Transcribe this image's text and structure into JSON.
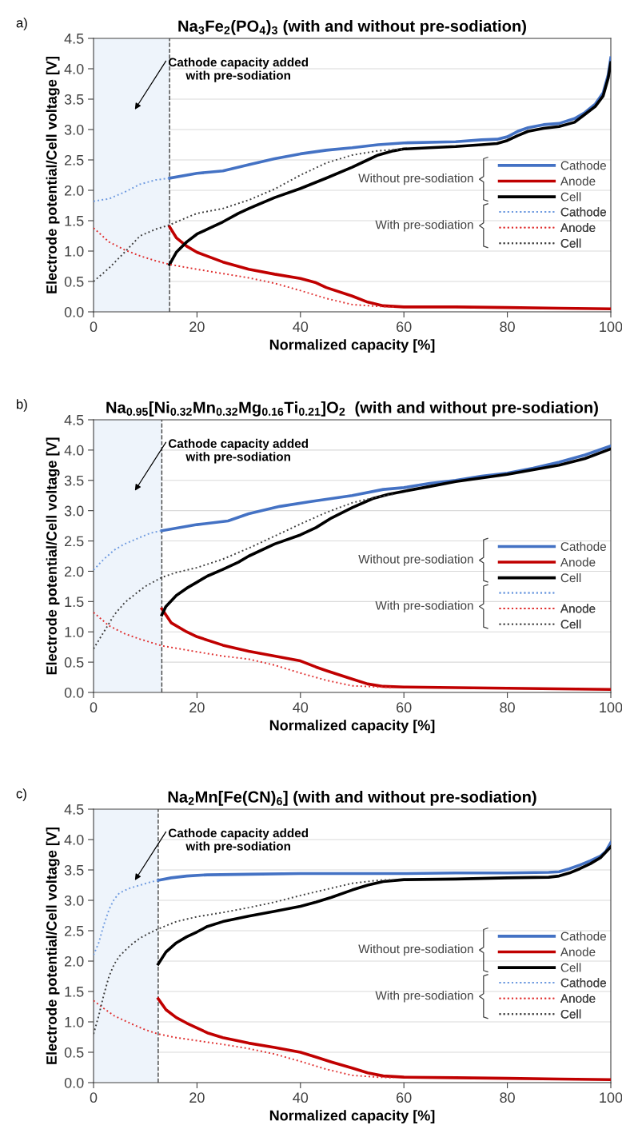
{
  "chart_data": [
    {
      "type": "line",
      "title": "Na$_{3}$Fe$_{2}$(PO$_{4}$)$_{3}$ (with and without pre-sodiation)",
      "xlabel": "Normalized capacity [%]",
      "ylabel": "Electrode potential/Cell voltage [V]",
      "xlim": [
        0,
        100
      ],
      "ylim": [
        0,
        4.5
      ],
      "xticks": [
        0,
        20,
        40,
        60,
        80,
        100
      ],
      "yticks": [
        {
          "value": 0,
          "label": "0.0"
        },
        0.5,
        {
          "value": 1,
          "label": "1.0"
        },
        1.5,
        {
          "value": 2,
          "label": "2.0"
        },
        2.5,
        {
          "value": 3,
          "label": "3.0"
        },
        3.5,
        {
          "value": 4,
          "label": "4.0"
        },
        4.5
      ],
      "grid": "y",
      "legend": "right",
      "bands": [
        {
          "axis": "x",
          "from": 0,
          "to": 14.7,
          "color": "#eef4fb"
        }
      ],
      "ref_lines": [
        {
          "axis": "x",
          "value": 14.7,
          "color": "#404040",
          "line_style": "dashed"
        }
      ],
      "annotations": [
        "a)",
        "Cathode capacity added\nwith pre-sodiation",
        "Without pre-sodiation",
        "With pre-sodiation"
      ],
      "series": [
        {
          "name": "Cathode",
          "color": "#4472c4",
          "line_style": "solid",
          "x": [
            14.7,
            20,
            25,
            30,
            35,
            40,
            45,
            50,
            55,
            60,
            70,
            75,
            78,
            80,
            82,
            84,
            87,
            90,
            93,
            95,
            97,
            98.5,
            99.5,
            100
          ],
          "values": [
            2.2,
            2.28,
            2.32,
            2.42,
            2.52,
            2.6,
            2.66,
            2.7,
            2.75,
            2.78,
            2.8,
            2.83,
            2.84,
            2.88,
            2.97,
            3.03,
            3.08,
            3.1,
            3.18,
            3.28,
            3.42,
            3.6,
            3.9,
            4.18
          ]
        },
        {
          "name": "Anode",
          "color": "#c00000",
          "line_style": "solid",
          "x": [
            14.7,
            16,
            18,
            20,
            25,
            30,
            35,
            40,
            43,
            45,
            50,
            53,
            56,
            60,
            70,
            80,
            90,
            100
          ],
          "values": [
            1.4,
            1.22,
            1.08,
            0.98,
            0.82,
            0.7,
            0.62,
            0.55,
            0.48,
            0.4,
            0.26,
            0.16,
            0.1,
            0.08,
            0.08,
            0.07,
            0.06,
            0.05
          ]
        },
        {
          "name": "Cell",
          "color": "#000000",
          "line_style": "solid",
          "x": [
            14.7,
            16,
            18,
            20,
            22,
            25,
            28,
            30,
            35,
            40,
            45,
            50,
            53,
            55,
            58,
            60,
            65,
            70,
            75,
            78,
            80,
            82,
            84,
            87,
            90,
            93,
            95,
            97,
            98.5,
            99.5,
            100
          ],
          "values": [
            0.78,
            0.98,
            1.15,
            1.28,
            1.36,
            1.48,
            1.62,
            1.7,
            1.88,
            2.03,
            2.2,
            2.38,
            2.5,
            2.58,
            2.65,
            2.68,
            2.7,
            2.72,
            2.75,
            2.77,
            2.82,
            2.9,
            2.97,
            3.02,
            3.05,
            3.12,
            3.25,
            3.38,
            3.55,
            3.85,
            4.1
          ]
        },
        {
          "name": "Cathode",
          "color": "#6f9be0",
          "line_style": "dotted",
          "x": [
            0,
            3,
            6,
            9,
            12,
            14.7
          ],
          "values": [
            1.82,
            1.86,
            1.97,
            2.1,
            2.17,
            2.2
          ]
        },
        {
          "name": "Anode",
          "color": "#e03030",
          "line_style": "dotted",
          "x": [
            0,
            3,
            6,
            9,
            12,
            14.7,
            20,
            25,
            30,
            35,
            40,
            45,
            50,
            55,
            58
          ],
          "values": [
            1.38,
            1.15,
            1.02,
            0.92,
            0.84,
            0.78,
            0.7,
            0.63,
            0.56,
            0.47,
            0.35,
            0.22,
            0.12,
            0.09,
            0.08
          ]
        },
        {
          "name": "Cell",
          "color": "#404040",
          "line_style": "dotted",
          "x": [
            0,
            3,
            6,
            9,
            12,
            14.7,
            18,
            20,
            25,
            30,
            35,
            40,
            45,
            50,
            55,
            60
          ],
          "values": [
            0.5,
            0.72,
            0.98,
            1.25,
            1.36,
            1.43,
            1.55,
            1.62,
            1.7,
            1.84,
            2.02,
            2.25,
            2.45,
            2.58,
            2.65,
            2.68
          ]
        }
      ]
    },
    {
      "type": "line",
      "title": "Na$_{0.95}$[Ni$_{0.32}$Mn$_{0.32}$Mg$_{0.16}$Ti$_{0.21}$]O$_{2}$  (with and without pre-sodiation)",
      "xlabel": "Normalized capacity [%]",
      "ylabel": "Electrode potential/Cell voltage [V]",
      "xlim": [
        0,
        100
      ],
      "ylim": [
        0,
        4.5
      ],
      "xticks": [
        0,
        20,
        40,
        60,
        80,
        100
      ],
      "yticks": [
        {
          "value": 0,
          "label": "0.0"
        },
        0.5,
        {
          "value": 1,
          "label": "1.0"
        },
        1.5,
        {
          "value": 2,
          "label": "2.0"
        },
        2.5,
        {
          "value": 3,
          "label": "3.0"
        },
        3.5,
        {
          "value": 4,
          "label": "4.0"
        },
        4.5
      ],
      "grid": "y",
      "legend": "right",
      "bands": [
        {
          "axis": "x",
          "from": 0,
          "to": 13.2,
          "color": "#eef4fb"
        }
      ],
      "ref_lines": [
        {
          "axis": "x",
          "value": 13.2,
          "color": "#404040",
          "line_style": "dashed"
        }
      ],
      "annotations": [
        "b)",
        "Cathode capacity added\nwith pre-sodiation",
        "Without pre-sodiation",
        "With pre-sodiation"
      ],
      "series": [
        {
          "name": "Cathode",
          "color": "#4472c4",
          "line_style": "solid",
          "x": [
            13.2,
            20,
            26,
            30,
            36,
            42,
            50,
            56,
            60,
            65,
            70,
            75,
            80,
            85,
            90,
            95,
            100
          ],
          "values": [
            2.67,
            2.77,
            2.83,
            2.95,
            3.07,
            3.15,
            3.25,
            3.35,
            3.38,
            3.45,
            3.5,
            3.57,
            3.62,
            3.7,
            3.8,
            3.92,
            4.07
          ]
        },
        {
          "name": "Anode",
          "color": "#c00000",
          "line_style": "solid",
          "x": [
            13.2,
            15,
            18,
            20,
            25,
            30,
            35,
            40,
            43,
            45,
            50,
            53,
            56,
            60,
            70,
            80,
            90,
            100
          ],
          "values": [
            1.38,
            1.15,
            1.0,
            0.92,
            0.78,
            0.68,
            0.6,
            0.52,
            0.42,
            0.36,
            0.22,
            0.14,
            0.1,
            0.09,
            0.08,
            0.07,
            0.06,
            0.05
          ]
        },
        {
          "name": "Cell",
          "color": "#000000",
          "line_style": "solid",
          "x": [
            13.2,
            14,
            16,
            18,
            20,
            22,
            25,
            28,
            30,
            35,
            40,
            43,
            46,
            50,
            54,
            57,
            60,
            65,
            70,
            80,
            90,
            95,
            100
          ],
          "values": [
            1.28,
            1.42,
            1.6,
            1.72,
            1.82,
            1.92,
            2.03,
            2.15,
            2.25,
            2.45,
            2.6,
            2.72,
            2.88,
            3.05,
            3.2,
            3.27,
            3.32,
            3.4,
            3.48,
            3.6,
            3.75,
            3.86,
            4.02
          ]
        },
        {
          "color": "#6f9be0",
          "line_style": "dotted",
          "x": [
            0,
            2,
            4,
            6,
            9,
            11,
            13.2
          ],
          "values": [
            2.02,
            2.2,
            2.35,
            2.45,
            2.56,
            2.63,
            2.67
          ]
        },
        {
          "name": "Anode",
          "color": "#e03030",
          "line_style": "dotted",
          "x": [
            0,
            3,
            6,
            9,
            13.2,
            20,
            25,
            30,
            35,
            40,
            45,
            50,
            55,
            58
          ],
          "values": [
            1.32,
            1.1,
            0.97,
            0.88,
            0.77,
            0.67,
            0.6,
            0.55,
            0.45,
            0.32,
            0.2,
            0.11,
            0.09,
            0.08
          ]
        },
        {
          "name": "Cell",
          "color": "#404040",
          "line_style": "dotted",
          "x": [
            0,
            2,
            4,
            6,
            8,
            10,
            13.2,
            16,
            20,
            25,
            30,
            35,
            40,
            45,
            50,
            55,
            58
          ],
          "values": [
            0.72,
            1.0,
            1.28,
            1.48,
            1.62,
            1.75,
            1.9,
            1.98,
            2.06,
            2.2,
            2.38,
            2.58,
            2.78,
            2.97,
            3.13,
            3.23,
            3.27
          ]
        }
      ]
    },
    {
      "type": "line",
      "title": "Na$_{2}$Mn[Fe(CN)$_{6}$] (with and without pre-sodiation)",
      "xlabel": "Normalized capacity [%]",
      "ylabel": "Electrode potential/Cell voltage [V]",
      "xlim": [
        0,
        100
      ],
      "ylim": [
        0,
        4.5
      ],
      "xticks": [
        0,
        20,
        40,
        60,
        80,
        100
      ],
      "yticks": [
        {
          "value": 0,
          "label": "0.0"
        },
        0.5,
        {
          "value": 1,
          "label": "1.0"
        },
        1.5,
        {
          "value": 2,
          "label": "2.0"
        },
        2.5,
        {
          "value": 3,
          "label": "3.0"
        },
        3.5,
        {
          "value": 4,
          "label": "4.0"
        },
        4.5
      ],
      "grid": "y",
      "legend": "right",
      "bands": [
        {
          "axis": "x",
          "from": 0,
          "to": 12.5,
          "color": "#eef4fb"
        }
      ],
      "ref_lines": [
        {
          "axis": "x",
          "value": 12.5,
          "color": "#404040",
          "line_style": "dashed"
        }
      ],
      "annotations": [
        "c)",
        "Cathode capacity added\nwith pre-sodiation",
        "Without pre-sodiation",
        "With pre-sodiation"
      ],
      "series": [
        {
          "name": "Cathode",
          "color": "#4472c4",
          "line_style": "solid",
          "x": [
            12.5,
            15,
            18,
            22,
            30,
            40,
            50,
            60,
            70,
            80,
            88,
            90,
            92,
            94,
            96,
            98,
            99,
            100
          ],
          "values": [
            3.33,
            3.37,
            3.4,
            3.42,
            3.43,
            3.44,
            3.44,
            3.44,
            3.45,
            3.45,
            3.46,
            3.47,
            3.52,
            3.58,
            3.65,
            3.73,
            3.8,
            3.95
          ]
        },
        {
          "name": "Anode",
          "color": "#c00000",
          "line_style": "solid",
          "x": [
            12.5,
            14,
            16,
            18,
            20,
            22,
            25,
            30,
            35,
            40,
            43,
            46,
            50,
            53,
            56,
            60,
            70,
            80,
            90,
            100
          ],
          "values": [
            1.38,
            1.2,
            1.07,
            0.98,
            0.9,
            0.82,
            0.74,
            0.65,
            0.58,
            0.5,
            0.42,
            0.34,
            0.24,
            0.16,
            0.11,
            0.09,
            0.08,
            0.07,
            0.06,
            0.05
          ]
        },
        {
          "name": "Cell",
          "color": "#000000",
          "line_style": "solid",
          "x": [
            12.5,
            14,
            16,
            18,
            20,
            22,
            25,
            30,
            35,
            40,
            43,
            46,
            50,
            53,
            56,
            60,
            70,
            80,
            88,
            90,
            92,
            94,
            96,
            98,
            100
          ],
          "values": [
            1.95,
            2.15,
            2.3,
            2.4,
            2.48,
            2.57,
            2.65,
            2.74,
            2.82,
            2.9,
            2.97,
            3.05,
            3.17,
            3.25,
            3.31,
            3.34,
            3.35,
            3.37,
            3.38,
            3.4,
            3.45,
            3.52,
            3.6,
            3.7,
            3.88
          ]
        },
        {
          "name": "Cathode",
          "color": "#6f9be0",
          "line_style": "dotted",
          "x": [
            0,
            1,
            2,
            3,
            4,
            5,
            7,
            9,
            11,
            12.5
          ],
          "values": [
            2.1,
            2.3,
            2.6,
            2.85,
            3.02,
            3.12,
            3.2,
            3.25,
            3.3,
            3.33
          ]
        },
        {
          "name": "Anode",
          "color": "#e03030",
          "line_style": "dotted",
          "x": [
            0,
            2,
            4,
            7,
            10,
            12.5,
            16,
            20,
            25,
            30,
            35,
            40,
            45,
            50,
            55,
            58
          ],
          "values": [
            1.35,
            1.22,
            1.1,
            0.98,
            0.87,
            0.8,
            0.74,
            0.69,
            0.63,
            0.56,
            0.47,
            0.35,
            0.22,
            0.12,
            0.09,
            0.08
          ]
        },
        {
          "name": "Cell",
          "color": "#404040",
          "line_style": "dotted",
          "x": [
            0,
            1,
            2,
            3,
            4,
            5,
            7,
            9,
            11,
            12.5,
            16,
            20,
            25,
            30,
            35,
            40,
            45,
            50,
            55,
            58
          ],
          "values": [
            0.8,
            1.1,
            1.45,
            1.75,
            1.95,
            2.08,
            2.25,
            2.38,
            2.47,
            2.53,
            2.65,
            2.73,
            2.8,
            2.88,
            2.97,
            3.08,
            3.18,
            3.28,
            3.33,
            3.34
          ]
        }
      ]
    }
  ]
}
